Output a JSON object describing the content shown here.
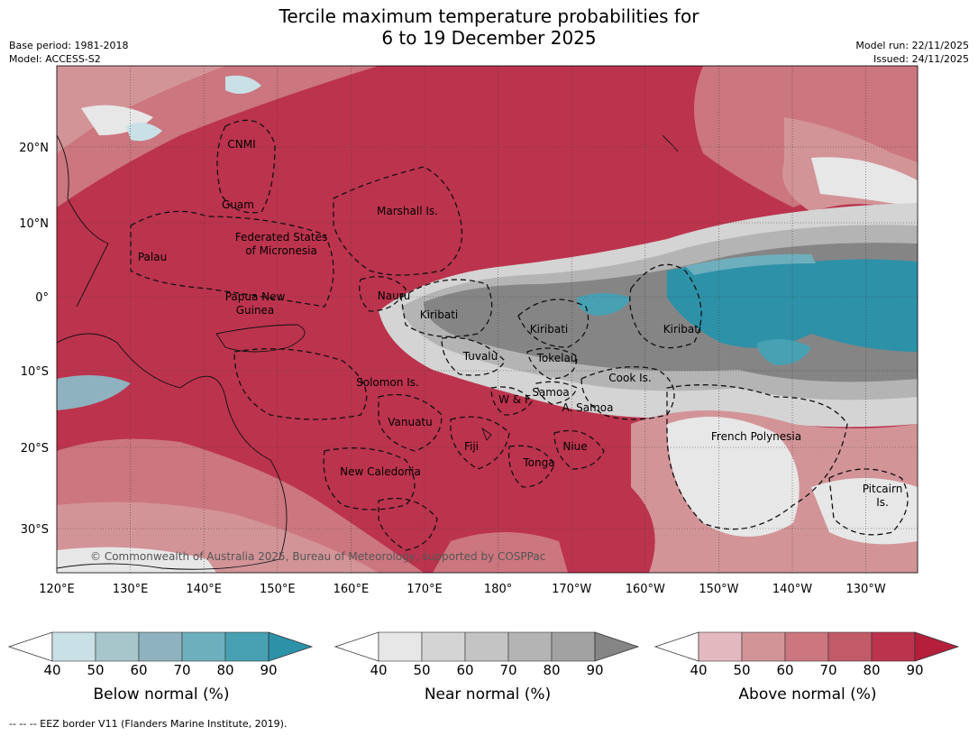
{
  "header": {
    "title_line1": "Tercile maximum temperature probabilities for",
    "title_line2": "6 to 19 December 2025",
    "base_period": "Base period: 1981-2018",
    "model": "Model: ACCESS-S2",
    "model_run": "Model run: 22/11/2025",
    "issued": "Issued: 24/11/2025"
  },
  "map": {
    "lon_labels": [
      "120°E",
      "130°E",
      "140°E",
      "150°E",
      "160°E",
      "170°E",
      "180°",
      "170°W",
      "160°W",
      "150°W",
      "140°W",
      "130°W"
    ],
    "lat_labels": [
      "20°N",
      "10°N",
      "0°",
      "10°S",
      "20°S",
      "30°S"
    ],
    "copyright": "© Commonwealth of Australia 2025, Bureau of Meteorology, supported by COSPPac",
    "place_labels": [
      {
        "id": "cnmi",
        "text": "CNMI"
      },
      {
        "id": "guam",
        "text": "Guam"
      },
      {
        "id": "marshall",
        "text": "Marshall Is."
      },
      {
        "id": "fsm1",
        "text": "Federated States"
      },
      {
        "id": "fsm2",
        "text": "of Micronesia"
      },
      {
        "id": "palau",
        "text": "Palau"
      },
      {
        "id": "png1",
        "text": "Papua New"
      },
      {
        "id": "png2",
        "text": "Guinea"
      },
      {
        "id": "nauru",
        "text": "Nauru"
      },
      {
        "id": "kiribati_w",
        "text": "Kiribati"
      },
      {
        "id": "kiribati_c",
        "text": "Kiribati"
      },
      {
        "id": "kiribati_e",
        "text": "Kiribati"
      },
      {
        "id": "tuvalu",
        "text": "Tuvalu"
      },
      {
        "id": "tokelau",
        "text": "Tokelau"
      },
      {
        "id": "cook",
        "text": "Cook Is."
      },
      {
        "id": "solomon",
        "text": "Solomon Is."
      },
      {
        "id": "wf",
        "text": "W & F"
      },
      {
        "id": "samoa",
        "text": "Samoa"
      },
      {
        "id": "asamoa",
        "text": "A. Samoa"
      },
      {
        "id": "vanuatu",
        "text": "Vanuatu"
      },
      {
        "id": "fiji",
        "text": "Fiji"
      },
      {
        "id": "niue",
        "text": "Niue"
      },
      {
        "id": "tonga",
        "text": "Tonga"
      },
      {
        "id": "newcal",
        "text": "New Caledonia"
      },
      {
        "id": "frpoly",
        "text": "French Polynesia"
      },
      {
        "id": "pitcairn1",
        "text": "Pitcairn"
      },
      {
        "id": "pitcairn2",
        "text": "Is."
      }
    ]
  },
  "legend": {
    "ticks": [
      "40",
      "50",
      "60",
      "70",
      "80",
      "90"
    ],
    "colorbars": [
      {
        "id": "below",
        "title": "Below normal (%)",
        "colors": [
          "#c8e0e6",
          "#a6c6cb",
          "#8eb2bf",
          "#6eafbd",
          "#47a1b3",
          "#2d91a8"
        ]
      },
      {
        "id": "near",
        "title": "Near normal (%)",
        "colors": [
          "#e7e7e7",
          "#d4d4d4",
          "#c4c4c4",
          "#b4b4b4",
          "#a2a2a2",
          "#858585"
        ]
      },
      {
        "id": "above",
        "title": "Above normal (%)",
        "colors": [
          "#e3b9bf",
          "#d39498",
          "#cc767f",
          "#c35a68",
          "#bc334d",
          "#b51f3c"
        ]
      }
    ]
  },
  "footer": "--  --  -- EEZ border V11 (Flanders Marine Institute, 2019)."
}
